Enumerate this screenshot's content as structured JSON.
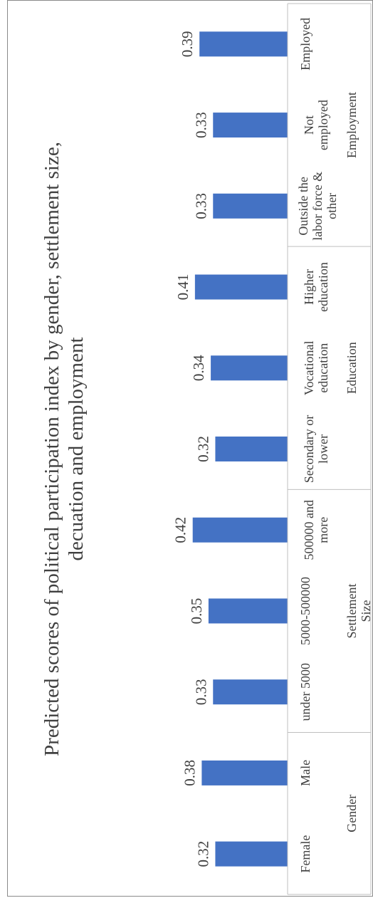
{
  "chart_data": {
    "type": "bar",
    "title_lines": [
      "Predicted scores of political participation index by gender, settlement size,",
      "decuation and employment"
    ],
    "xlabel": "",
    "ylabel": "",
    "ylim": [
      0,
      0.45
    ],
    "grid": false,
    "legend": "none",
    "bar_color": "#4472C4",
    "categories": [
      {
        "label_lines": [
          "Female"
        ],
        "value": 0.32,
        "value_label": "0.32",
        "group": "Gender"
      },
      {
        "label_lines": [
          "Male"
        ],
        "value": 0.38,
        "value_label": "0.38",
        "group": "Gender"
      },
      {
        "label_lines": [
          "under 5000"
        ],
        "value": 0.33,
        "value_label": "0.33",
        "group": "Settlement Size"
      },
      {
        "label_lines": [
          "5000-500000"
        ],
        "value": 0.35,
        "value_label": "0.35",
        "group": "Settlement Size"
      },
      {
        "label_lines": [
          "500000 and",
          "more"
        ],
        "value": 0.42,
        "value_label": "0.42",
        "group": "Settlement Size"
      },
      {
        "label_lines": [
          "Secondary or",
          "lower"
        ],
        "value": 0.32,
        "value_label": "0.32",
        "group": "Education"
      },
      {
        "label_lines": [
          "Vocational",
          "education"
        ],
        "value": 0.34,
        "value_label": "0.34",
        "group": "Education"
      },
      {
        "label_lines": [
          "Higher",
          "education"
        ],
        "value": 0.41,
        "value_label": "0.41",
        "group": "Education"
      },
      {
        "label_lines": [
          "Outside the",
          "labor force &",
          "other"
        ],
        "value": 0.33,
        "value_label": "0.33",
        "group": "Employment"
      },
      {
        "label_lines": [
          "Not",
          "employed"
        ],
        "value": 0.33,
        "value_label": "0.33",
        "group": "Employment"
      },
      {
        "label_lines": [
          "Employed"
        ],
        "value": 0.39,
        "value_label": "0.39",
        "group": "Employment"
      }
    ],
    "groups": [
      {
        "label_lines": [
          "Gender"
        ]
      },
      {
        "label_lines": [
          "Settlement",
          "Size"
        ]
      },
      {
        "label_lines": [
          "Education"
        ]
      },
      {
        "label_lines": [
          "Employment"
        ]
      }
    ]
  }
}
